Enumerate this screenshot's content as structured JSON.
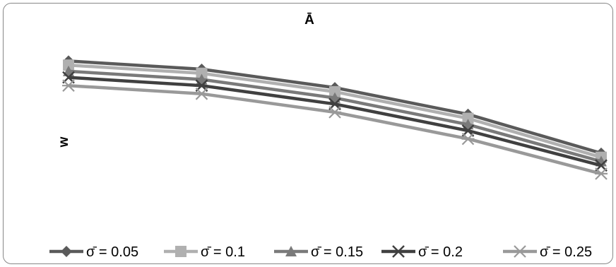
{
  "chart_data": {
    "type": "line",
    "title": "Ā",
    "xlabel": "",
    "ylabel": "w",
    "x": [
      1,
      2,
      3,
      4,
      5
    ],
    "ylim": [
      0,
      1
    ],
    "grid": false,
    "axes_visible": false,
    "legend_position": "bottom",
    "series": [
      {
        "name": "σ̄ = 0.05",
        "values": [
          0.84,
          0.8,
          0.71,
          0.58,
          0.39
        ],
        "color": "#5a5a5a",
        "marker": "diamond"
      },
      {
        "name": "σ̄ = 0.1",
        "values": [
          0.82,
          0.78,
          0.69,
          0.56,
          0.37
        ],
        "color": "#b0b0b0",
        "marker": "square"
      },
      {
        "name": "σ̄ = 0.15",
        "values": [
          0.79,
          0.75,
          0.66,
          0.53,
          0.35
        ],
        "color": "#7a7a7a",
        "marker": "triangle"
      },
      {
        "name": "σ̄ = 0.2",
        "values": [
          0.76,
          0.72,
          0.63,
          0.5,
          0.33
        ],
        "color": "#404040",
        "marker": "x"
      },
      {
        "name": "σ̄ = 0.25",
        "values": [
          0.72,
          0.68,
          0.59,
          0.46,
          0.29
        ],
        "color": "#999999",
        "marker": "star"
      }
    ]
  }
}
